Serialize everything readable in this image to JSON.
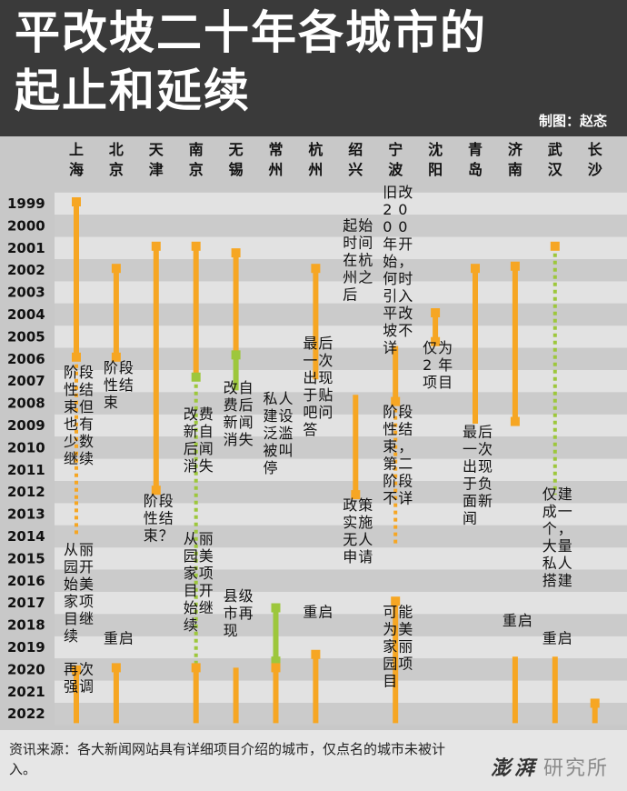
{
  "header": {
    "title_line1": "平改坡二十年各城市的",
    "title_line2": "起止和延续",
    "credit": "制图：赵忞"
  },
  "footer": {
    "source": "资讯来源：各大新闻网站具有详细项目介绍的城市，仅点名的城市未被计入。",
    "logo_main": "澎湃",
    "logo_sub": "研究所"
  },
  "colors": {
    "orange": "#f6a623",
    "green": "#9dc73c",
    "header": "#3a3a3a",
    "row_light": "#e2e2e2",
    "row_dark": "#cbcbcb"
  },
  "chart_data": {
    "type": "timeline",
    "years": [
      1999,
      2000,
      2001,
      2002,
      2003,
      2004,
      2005,
      2006,
      2007,
      2008,
      2009,
      2010,
      2011,
      2012,
      2013,
      2014,
      2015,
      2016,
      2017,
      2018,
      2019,
      2020,
      2021,
      2022
    ],
    "cities": [
      {
        "name": "上海",
        "segments": [
          {
            "from": 1999,
            "to": 2006,
            "style": "solid",
            "color": "orange"
          },
          {
            "from": 2006,
            "to": 2012.5,
            "style": "dotted",
            "color": "orange"
          },
          {
            "from": 2012.5,
            "to": 2014,
            "style": "dotted",
            "color": "orange"
          },
          {
            "from": 2020.1,
            "to": 2022.5,
            "style": "solid",
            "color": "orange"
          }
        ],
        "markers": [
          {
            "year": 1999,
            "color": "orange"
          },
          {
            "year": 2006,
            "color": "orange"
          },
          {
            "year": 2020.1,
            "color": "orange"
          }
        ],
        "annotations": [
          {
            "text": "阶段性结束但也有少数继续",
            "year": 2006.9
          },
          {
            "text": "从丽园开始美家项目继续",
            "year": 2014.9
          },
          {
            "text": "再次强调",
            "year": 2020.3
          }
        ]
      },
      {
        "name": "北京",
        "segments": [
          {
            "from": 2002,
            "to": 2006,
            "style": "solid",
            "color": "orange"
          },
          {
            "from": 2020,
            "to": 2022.5,
            "style": "solid",
            "color": "orange"
          }
        ],
        "markers": [
          {
            "year": 2002,
            "color": "orange"
          },
          {
            "year": 2006,
            "color": "orange"
          },
          {
            "year": 2020,
            "color": "orange"
          }
        ],
        "annotations": [
          {
            "text": "阶段性结束",
            "year": 2006.7
          },
          {
            "text": "重启",
            "year": 2018.9
          }
        ]
      },
      {
        "name": "天津",
        "segments": [
          {
            "from": 2001,
            "to": 2012,
            "style": "solid",
            "color": "orange"
          }
        ],
        "markers": [
          {
            "year": 2001,
            "color": "orange"
          },
          {
            "year": 2012,
            "color": "orange"
          }
        ],
        "annotations": [
          {
            "text": "阶段性结束？",
            "year": 2012.7
          }
        ]
      },
      {
        "name": "南京",
        "segments": [
          {
            "from": 2001,
            "to": 2006.9,
            "style": "solid",
            "color": "orange"
          },
          {
            "from": 2006.9,
            "to": 2020,
            "style": "dotted",
            "color": "green"
          },
          {
            "from": 2020,
            "to": 2022.5,
            "style": "solid",
            "color": "orange"
          }
        ],
        "markers": [
          {
            "year": 2001,
            "color": "orange"
          },
          {
            "year": 2006.9,
            "color": "green"
          },
          {
            "year": 2020,
            "color": "orange"
          }
        ],
        "annotations": [
          {
            "text": "改费新自后闻消失",
            "year": 2008.8
          },
          {
            "text": "从丽园美家项目开始继续",
            "year": 2014.4
          }
        ]
      },
      {
        "name": "无锡",
        "segments": [
          {
            "from": 2001.3,
            "to": 2005.9,
            "style": "solid",
            "color": "orange"
          },
          {
            "from": 2005.9,
            "to": 2007.5,
            "style": "solid",
            "color": "green"
          },
          {
            "from": 2020,
            "to": 2022.5,
            "style": "solid",
            "color": "orange"
          }
        ],
        "markers": [
          {
            "year": 2001.3,
            "color": "orange"
          },
          {
            "year": 2005.9,
            "color": "green"
          }
        ],
        "annotations": [
          {
            "text": "改自费后新闻消失",
            "year": 2007.6
          },
          {
            "text": "县级市再现",
            "year": 2017
          }
        ]
      },
      {
        "name": "常州",
        "segments": [
          {
            "from": 2017.3,
            "to": 2019.7,
            "style": "solid",
            "color": "green"
          },
          {
            "from": 2020,
            "to": 2022.5,
            "style": "solid",
            "color": "orange"
          }
        ],
        "markers": [
          {
            "year": 2017.3,
            "color": "green"
          },
          {
            "year": 2019.7,
            "color": "green"
          },
          {
            "year": 2020,
            "color": "orange"
          }
        ],
        "annotations": [
          {
            "text": "私人建设泛滥被叫停",
            "year": 2008.1
          }
        ]
      },
      {
        "name": "杭州",
        "segments": [
          {
            "from": 2002,
            "to": 2007,
            "style": "solid",
            "color": "orange"
          },
          {
            "from": 2019.4,
            "to": 2022.5,
            "style": "solid",
            "color": "orange"
          }
        ],
        "markers": [
          {
            "year": 2002,
            "color": "orange"
          },
          {
            "year": 2019.4,
            "color": "orange"
          }
        ],
        "annotations": [
          {
            "text": "最后一次出现于贴吧问答",
            "year": 2005.6
          },
          {
            "text": "重启",
            "year": 2017.7
          }
        ]
      },
      {
        "name": "绍兴",
        "segments": [
          {
            "from": 2007.7,
            "to": 2012.2,
            "style": "solid",
            "color": "orange"
          }
        ],
        "markers": [
          {
            "year": 2012.2,
            "color": "orange"
          }
        ],
        "annotations": [
          {
            "text": "起始时间在杭州之后",
            "year": 2000.3
          },
          {
            "text": "政策实施无人申请",
            "year": 2012.9
          }
        ]
      },
      {
        "name": "宁波",
        "segments": [
          {
            "from": 2005.5,
            "to": 2008,
            "style": "solid",
            "color": "orange"
          },
          {
            "from": 2008,
            "to": 2014.5,
            "style": "dotted",
            "color": "orange"
          },
          {
            "from": 2017,
            "to": 2022.5,
            "style": "solid",
            "color": "orange"
          }
        ],
        "markers": [
          {
            "year": 2008,
            "color": "orange"
          },
          {
            "year": 2017,
            "color": "orange"
          }
        ],
        "annotations": [
          {
            "text": "旧改2000年开始，何时引入平改坡不详",
            "year": 1998.8
          },
          {
            "text": "阶段性结束，第二阶段不详",
            "year": 2008.7
          },
          {
            "text": "可能为美家丽园项目",
            "year": 2017.7
          }
        ]
      },
      {
        "name": "沈阳",
        "segments": [
          {
            "from": 2004,
            "to": 2005.3,
            "style": "solid",
            "color": "orange"
          }
        ],
        "markers": [
          {
            "year": 2004,
            "color": "orange"
          },
          {
            "year": 2005.3,
            "color": "orange"
          }
        ],
        "annotations": [
          {
            "text": "仅为2年项目",
            "year": 2005.8
          }
        ]
      },
      {
        "name": "青岛",
        "segments": [
          {
            "from": 2002,
            "to": 2009,
            "style": "solid",
            "color": "orange"
          }
        ],
        "markers": [
          {
            "year": 2002,
            "color": "orange"
          }
        ],
        "annotations": [
          {
            "text": "最后一次出现于负面新闻",
            "year": 2009.6
          }
        ]
      },
      {
        "name": "济南",
        "segments": [
          {
            "from": 2001.9,
            "to": 2008.9,
            "style": "solid",
            "color": "orange"
          },
          {
            "from": 2019.5,
            "to": 2022.5,
            "style": "solid",
            "color": "orange"
          }
        ],
        "markers": [
          {
            "year": 2001.9,
            "color": "orange"
          },
          {
            "year": 2008.9,
            "color": "orange"
          }
        ],
        "annotations": [
          {
            "text": "重启",
            "year": 2018.1
          }
        ]
      },
      {
        "name": "武汉",
        "segments": [
          {
            "from": 2001,
            "to": 2012.2,
            "style": "dotted",
            "color": "green"
          },
          {
            "from": 2019.5,
            "to": 2022.5,
            "style": "solid",
            "color": "orange"
          }
        ],
        "markers": [
          {
            "year": 2001,
            "color": "orange"
          }
        ],
        "annotations": [
          {
            "text": "仅建成一个，大量私人搭建",
            "year": 2012.4
          },
          {
            "text": "重启",
            "year": 2018.9
          }
        ]
      },
      {
        "name": "长沙",
        "segments": [
          {
            "from": 2021.6,
            "to": 2022.5,
            "style": "solid",
            "color": "orange"
          }
        ],
        "markers": [
          {
            "year": 2021.6,
            "color": "orange"
          }
        ],
        "annotations": []
      }
    ]
  }
}
